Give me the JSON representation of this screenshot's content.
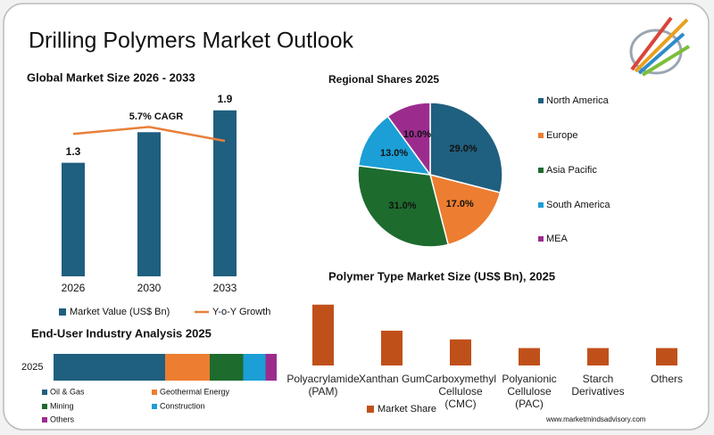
{
  "title": "Drilling Polymers Market Outlook",
  "source": "www.marketmindsadvisory.com",
  "chart_data": [
    {
      "type": "bar",
      "title": "Global Market Size 2026 - 2033",
      "categories": [
        "2026",
        "2030",
        "2033"
      ],
      "annotation": "5.7% CAGR",
      "ylim": [
        0,
        2
      ],
      "series": [
        {
          "name": "Market Value (US$ Bn)",
          "type": "bar",
          "color": "#1f5f7f",
          "values": [
            1.3,
            1.65,
            1.9
          ],
          "value_labels": [
            "1.3",
            null,
            "1.9"
          ]
        },
        {
          "name": "Y-o-Y Growth",
          "type": "line",
          "color": "#e8803a",
          "values": [
            1.63,
            1.71,
            1.55
          ]
        }
      ]
    },
    {
      "type": "pie",
      "title": "Regional Shares 2025",
      "categories": [
        "North America",
        "Europe",
        "Asia Pacific",
        "South America",
        "MEA"
      ],
      "values": [
        29,
        17,
        31,
        13,
        10
      ],
      "value_labels": [
        "29.0%",
        "17.0%",
        "31.0%",
        "13.0%",
        "10.0%"
      ],
      "colors": [
        "#1f5f7f",
        "#ed7d31",
        "#1e6b2e",
        "#1b9fd6",
        "#9b2c8e"
      ],
      "legend": "right"
    },
    {
      "type": "bar",
      "title": "Polymer Type Market Size (US$ Bn), 2025",
      "categories": [
        "Polyacrylamide (PAM)",
        "Xanthan Gum",
        "Carboxymethyl Cellulose (CMC)",
        "Polyanionic Cellulose (PAC)",
        "Starch Derivatives",
        "Others"
      ],
      "ylim": [
        0,
        0.4
      ],
      "series": [
        {
          "name": "Market Share",
          "type": "bar",
          "color": "#c0501a",
          "values": [
            0.35,
            0.2,
            0.15,
            0.1,
            0.1,
            0.1
          ]
        }
      ]
    },
    {
      "type": "stacked-bar",
      "title": "End-User Industry Analysis 2025",
      "orientation": "horizontal",
      "categories": [
        "2025"
      ],
      "xlim": [
        0,
        100
      ],
      "series": [
        {
          "name": "Oil & Gas",
          "color": "#1f5f7f",
          "values": [
            50
          ]
        },
        {
          "name": "Geothermal Energy",
          "color": "#ed7d31",
          "values": [
            20
          ]
        },
        {
          "name": "Mining",
          "color": "#1e6b2e",
          "values": [
            15
          ]
        },
        {
          "name": "Construction",
          "color": "#1b9fd6",
          "values": [
            10
          ]
        },
        {
          "name": "Others",
          "color": "#9b2c8e",
          "values": [
            5
          ]
        }
      ]
    }
  ]
}
